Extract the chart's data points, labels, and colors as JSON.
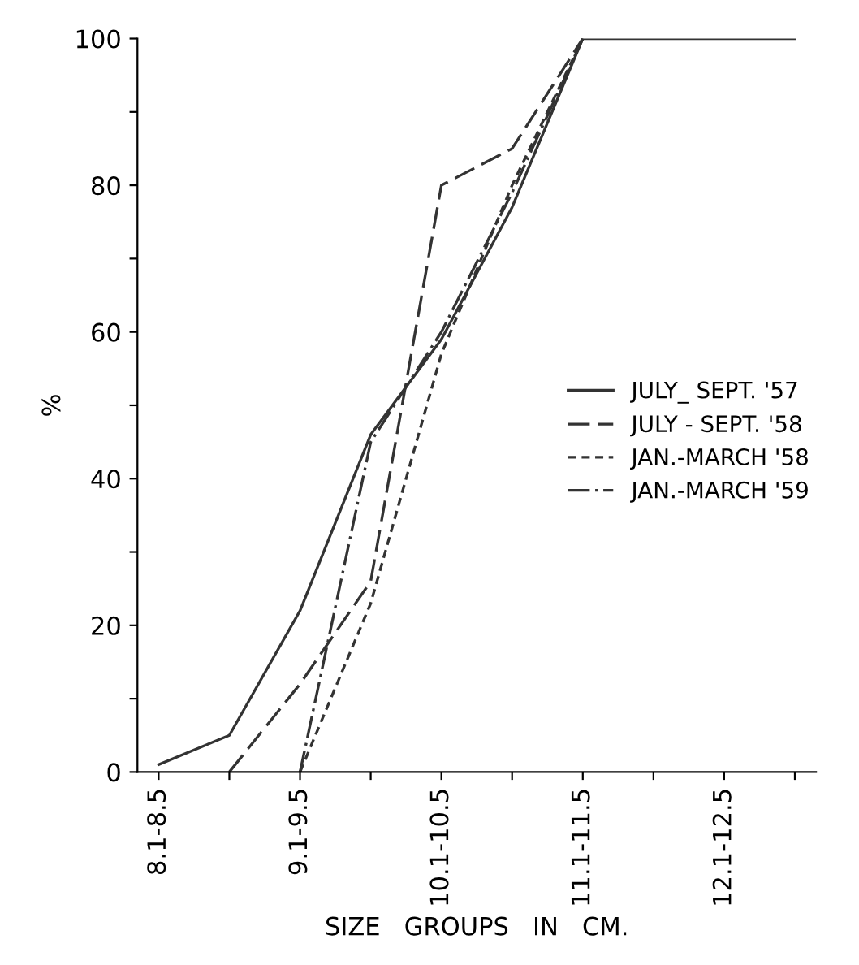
{
  "chart_data": {
    "type": "line",
    "xlabel": "SIZE   GROUPS   IN   CM.",
    "ylabel": "%",
    "categories": [
      "8.1-8.5",
      null,
      "9.1-9.5",
      null,
      "10.1-10.5",
      null,
      "11.1-11.5",
      null,
      "12.1-12.5",
      null
    ],
    "series": [
      {
        "name": "JULY_ SEPT. '57",
        "color": "#333333",
        "line_style": "solid",
        "values": [
          1,
          5,
          22,
          46,
          59,
          77,
          100,
          100,
          100,
          100
        ]
      },
      {
        "name": "JULY - SEPT. '58",
        "color": "#333333",
        "line_style": "longdash",
        "values": [
          null,
          0,
          12,
          26,
          80,
          85,
          100,
          null,
          null,
          null
        ]
      },
      {
        "name": "JAN.-MARCH '58",
        "color": "#333333",
        "line_style": "dashed",
        "values": [
          null,
          null,
          0,
          23,
          57,
          80,
          100,
          null,
          null,
          null
        ]
      },
      {
        "name": "JAN.-MARCH '59",
        "color": "#333333",
        "line_style": "dashdot",
        "values": [
          null,
          null,
          0,
          45,
          60,
          79,
          100,
          null,
          null,
          null
        ]
      }
    ],
    "ylim": [
      0,
      100
    ],
    "yticks": [
      0,
      {
        "value": 10,
        "label": null
      },
      20,
      {
        "value": 30,
        "label": null
      },
      40,
      {
        "value": 50,
        "label": null
      },
      60,
      {
        "value": 70,
        "label": null
      },
      80,
      {
        "value": 90,
        "label": null
      },
      100
    ],
    "grid": false,
    "legend": "right",
    "marker": "none"
  }
}
